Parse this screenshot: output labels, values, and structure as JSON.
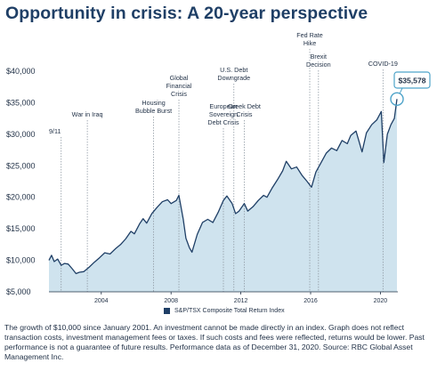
{
  "title": "Opportunity in crisis: A 20-year perspective",
  "footnote": "The growth of $10,000 since January 2001. An investment cannot be made directly in an index. Graph does not reflect transaction costs, investment management fees or taxes. If such costs and fees were reflected, returns would be lower. Past performance is not a guarantee of future results. Performance data as of December 31, 2020. Source: RBC Global Asset Management Inc.",
  "colors": {
    "title": "#1f3f66",
    "line": "#1f3f66",
    "area": "#cfe3ee",
    "annotation_line": "#8f99a3"
  },
  "chart_data": {
    "type": "area",
    "title": "Opportunity in crisis: A 20-year perspective",
    "xlabel": "",
    "ylabel": "",
    "xlim": [
      2001,
      2021
    ],
    "ylim": [
      5000,
      40000
    ],
    "grid": false,
    "legend_position": "bottom-center",
    "x_ticks": [
      2004,
      2008,
      2012,
      2016,
      2020
    ],
    "y_ticks": [
      {
        "value": 5000,
        "label": "$5,000"
      },
      {
        "value": 10000,
        "label": "$10,000"
      },
      {
        "value": 15000,
        "label": "$15,000"
      },
      {
        "value": 20000,
        "label": "$20,000"
      },
      {
        "value": 25000,
        "label": "$25,000"
      },
      {
        "value": 30000,
        "label": "$30,000"
      },
      {
        "value": 35000,
        "label": "$35,000"
      },
      {
        "value": 40000,
        "label": "$40,000"
      }
    ],
    "series": [
      {
        "name": "S&P/TSX Composite Total Return Index",
        "x": [
          2001.0,
          2001.15,
          2001.3,
          2001.5,
          2001.7,
          2001.9,
          2002.1,
          2002.35,
          2002.55,
          2002.75,
          2003.0,
          2003.3,
          2003.6,
          2003.9,
          2004.2,
          2004.5,
          2004.8,
          2005.1,
          2005.4,
          2005.7,
          2005.9,
          2006.2,
          2006.4,
          2006.6,
          2006.9,
          2007.2,
          2007.5,
          2007.8,
          2008.0,
          2008.3,
          2008.45,
          2008.7,
          2008.85,
          2009.05,
          2009.2,
          2009.5,
          2009.8,
          2010.1,
          2010.4,
          2010.7,
          2011.0,
          2011.2,
          2011.5,
          2011.7,
          2011.9,
          2012.2,
          2012.4,
          2012.7,
          2013.0,
          2013.3,
          2013.5,
          2013.8,
          2014.1,
          2014.4,
          2014.6,
          2014.9,
          2015.2,
          2015.5,
          2015.8,
          2016.05,
          2016.3,
          2016.6,
          2016.9,
          2017.2,
          2017.5,
          2017.8,
          2018.1,
          2018.3,
          2018.6,
          2018.95,
          2019.2,
          2019.5,
          2019.8,
          2020.05,
          2020.2,
          2020.4,
          2020.6,
          2020.8,
          2020.95
        ],
        "values": [
          10000,
          10800,
          9800,
          10200,
          9200,
          9500,
          9400,
          8600,
          7900,
          8100,
          8200,
          8900,
          9700,
          10400,
          11200,
          11000,
          11800,
          12500,
          13400,
          14600,
          14200,
          15800,
          16600,
          15900,
          17400,
          18400,
          19300,
          19600,
          19000,
          19500,
          20300,
          16500,
          13500,
          12000,
          11300,
          14100,
          16000,
          16500,
          16000,
          17600,
          19500,
          20200,
          19000,
          17400,
          17800,
          19000,
          17800,
          18500,
          19500,
          20300,
          20000,
          21500,
          22800,
          24200,
          25700,
          24500,
          24800,
          23500,
          22500,
          21600,
          24000,
          25500,
          27000,
          27800,
          27400,
          29000,
          28500,
          29800,
          30500,
          27200,
          30200,
          31500,
          32300,
          33600,
          25500,
          30000,
          31500,
          32500,
          35578
        ]
      }
    ],
    "annotations": [
      {
        "label": "9/11",
        "x": 2001.7
      },
      {
        "label": "War in Iraq",
        "x": 2003.2
      },
      {
        "label": "Housing\nBubble Burst",
        "x": 2007.0
      },
      {
        "label": "Global\nFinancial\nCrisis",
        "x": 2008.45
      },
      {
        "label": "European\nSovereign\nDebt Crisis",
        "x": 2011.0
      },
      {
        "label": "U.S. Debt\nDowngrade",
        "x": 2011.6
      },
      {
        "label": "Greek Debt\nCrisis",
        "x": 2012.2
      },
      {
        "label": "Fed Rate\nHike",
        "x": 2015.95
      },
      {
        "label": "Brexit\nDecision",
        "x": 2016.45
      },
      {
        "label": "COVID-19",
        "x": 2020.15
      }
    ],
    "end_label": "$35,578"
  }
}
